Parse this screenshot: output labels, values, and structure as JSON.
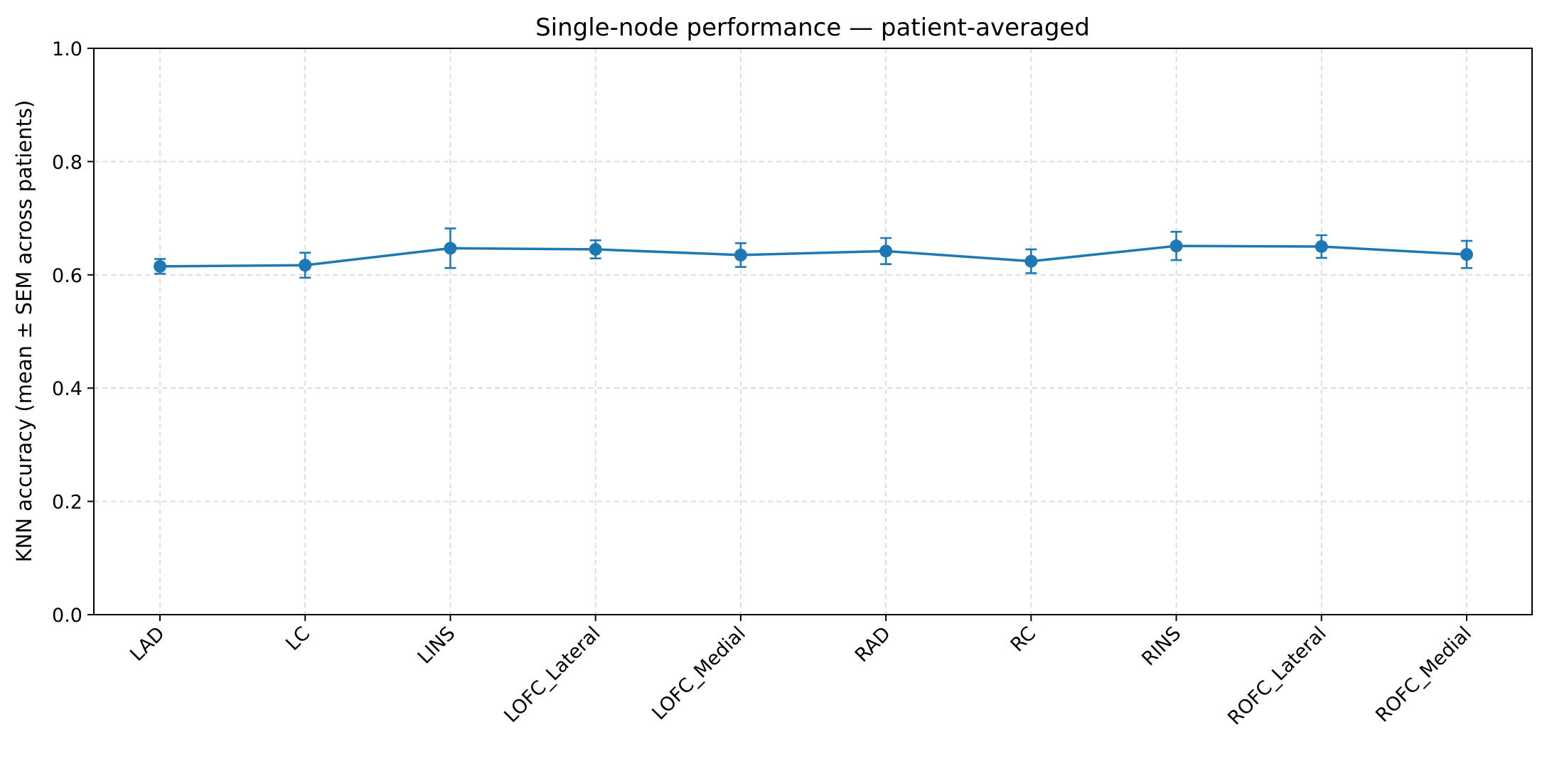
{
  "chart_data": {
    "type": "line",
    "title": "Single-node performance — patient-averaged",
    "xlabel": "",
    "ylabel": "KNN accuracy (mean ± SEM across patients)",
    "ylim": [
      0.0,
      1.0
    ],
    "yticks": [
      "0.0",
      "0.2",
      "0.4",
      "0.6",
      "0.8",
      "1.0"
    ],
    "grid": true,
    "categories": [
      "LAD",
      "LC",
      "LINS",
      "LOFC_Lateral",
      "LOFC_Medial",
      "RAD",
      "RC",
      "RINS",
      "ROFC_Lateral",
      "ROFC_Medial"
    ],
    "series": [
      {
        "values": [
          0.615,
          0.617,
          0.647,
          0.645,
          0.635,
          0.642,
          0.624,
          0.651,
          0.65,
          0.636
        ],
        "errors": [
          0.013,
          0.022,
          0.035,
          0.016,
          0.021,
          0.023,
          0.021,
          0.025,
          0.02,
          0.024
        ],
        "color": "#1f77b4"
      }
    ]
  }
}
